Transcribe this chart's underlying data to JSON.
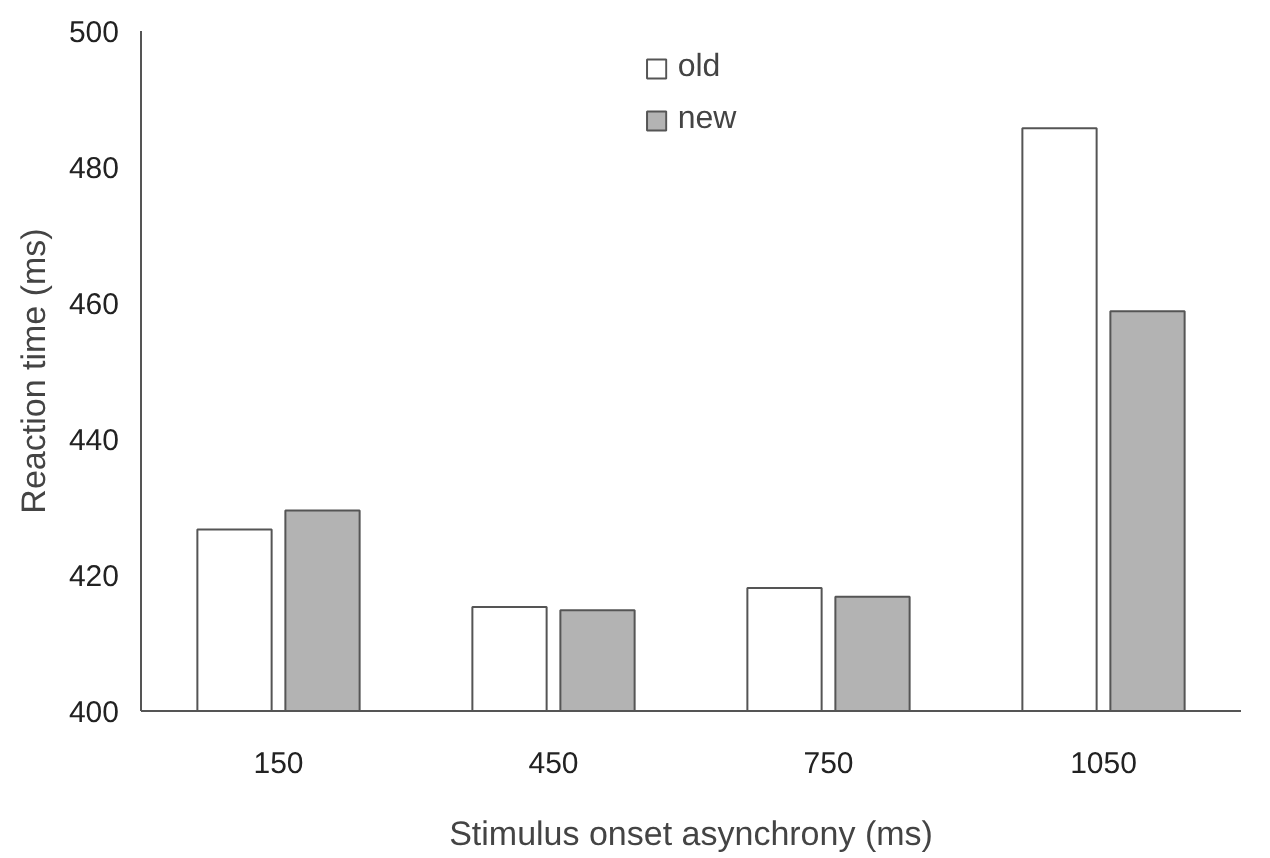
{
  "chart_data": {
    "type": "bar",
    "xlabel": "Stimulus onset asynchrony (ms)",
    "ylabel": "Reaction time (ms)",
    "categories": [
      "150",
      "450",
      "750",
      "1050"
    ],
    "series": [
      {
        "name": "old",
        "color": "#ffffff",
        "values": [
          426.7,
          415.3,
          418.1,
          485.7
        ]
      },
      {
        "name": "new",
        "color": "#b3b3b3",
        "values": [
          429.5,
          414.8,
          416.8,
          458.8
        ]
      }
    ],
    "ylim": [
      400,
      500
    ],
    "yticks": [
      400,
      420,
      440,
      460,
      480,
      500
    ],
    "grid": false,
    "legend": "top"
  }
}
